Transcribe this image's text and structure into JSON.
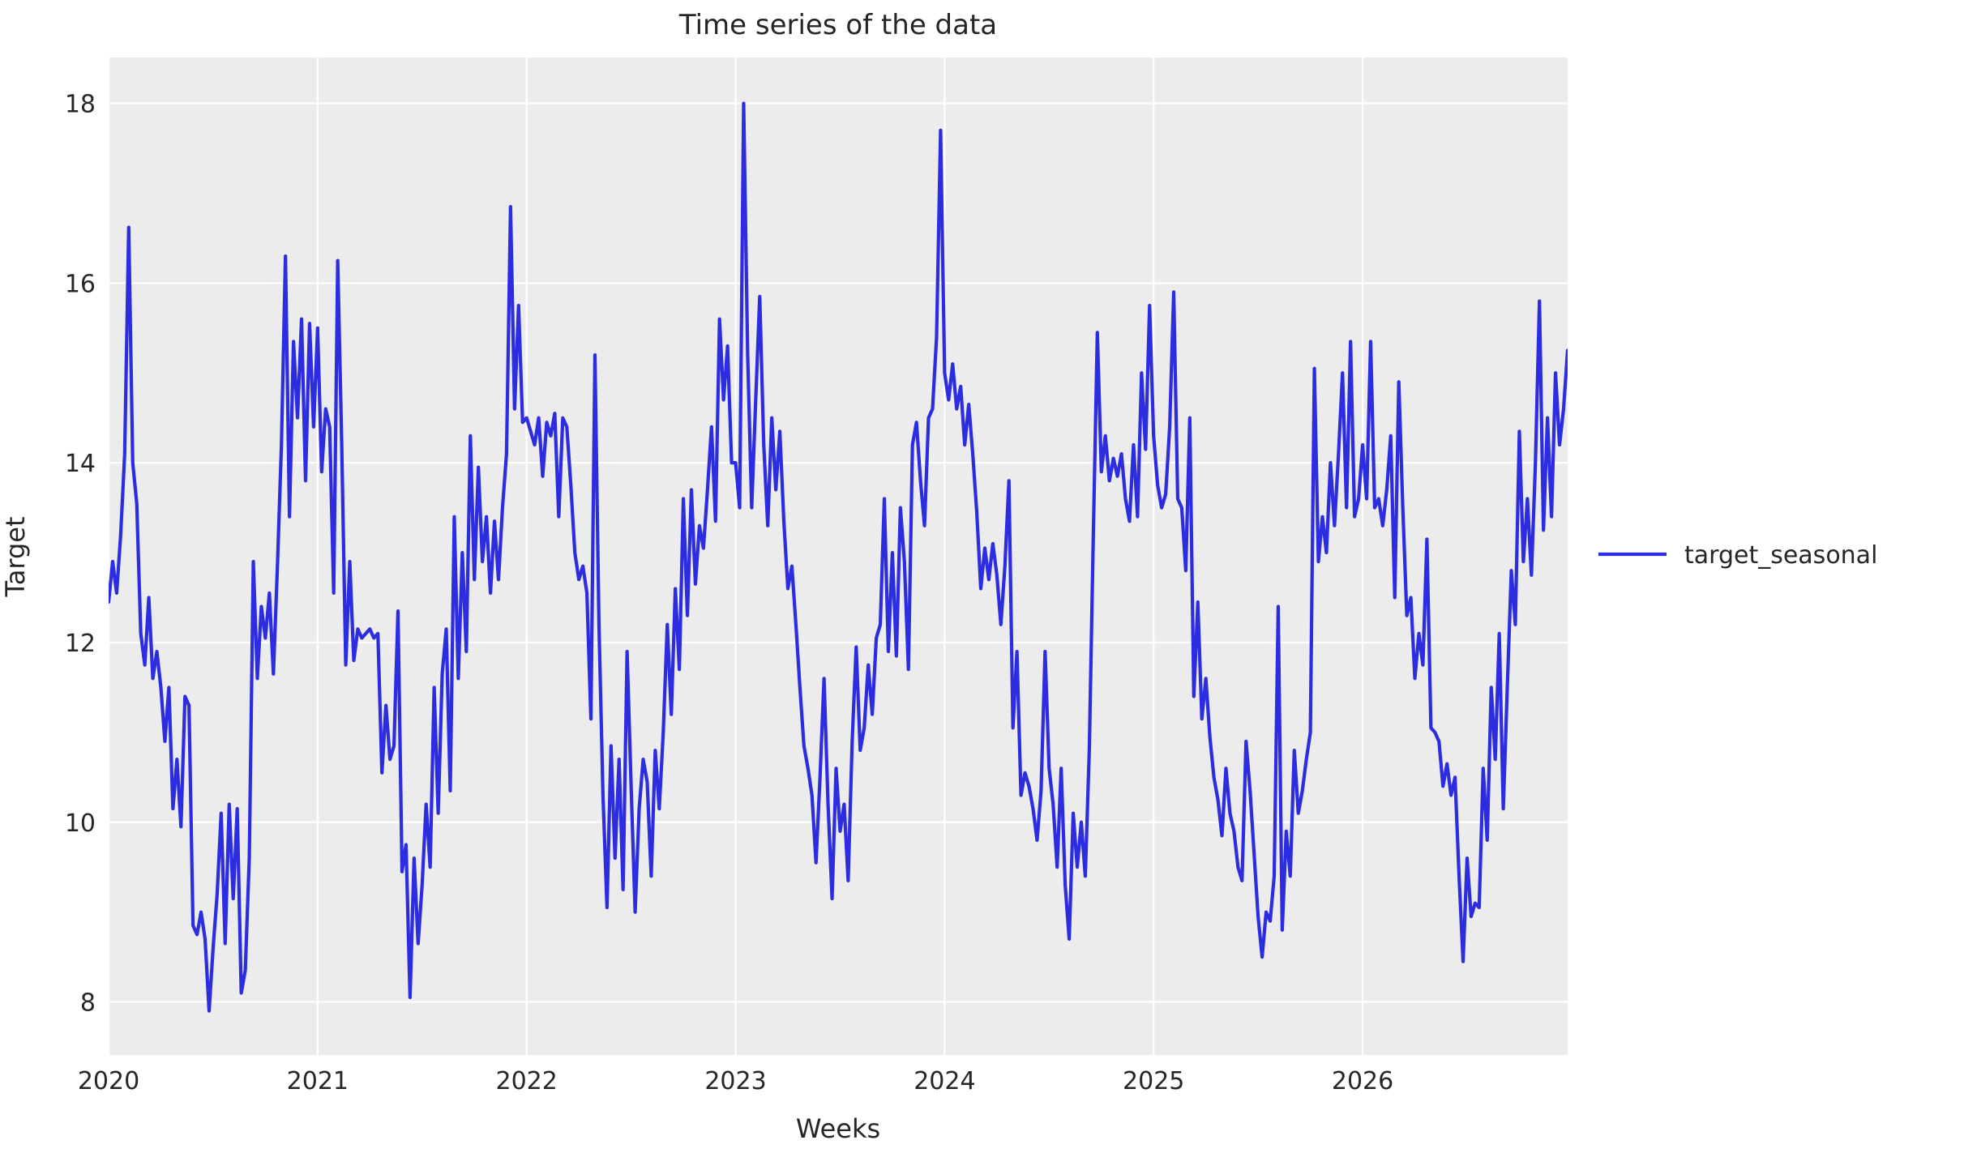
{
  "figure": {
    "title": "Time series of the data",
    "xlabel": "Weeks",
    "ylabel": "Target",
    "legend": {
      "label": "target_seasonal"
    },
    "colors": {
      "line": "#2c2ce0",
      "plot_bg": "#ececec",
      "grid": "#ffffff",
      "text": "#262626"
    }
  },
  "chart_data": {
    "type": "line",
    "title": "Time series of the data",
    "xlabel": "Weeks",
    "ylabel": "Target",
    "series_name": "target_seasonal",
    "grid": true,
    "legend_position": "right-outside-center",
    "x_start_year": 2020,
    "points_per_year": 52,
    "x_ticks": [
      2020,
      2021,
      2022,
      2023,
      2024,
      2025,
      2026
    ],
    "x_tick_labels": [
      "2020",
      "2021",
      "2022",
      "2023",
      "2024",
      "2025",
      "2026"
    ],
    "y_ticks": [
      8,
      10,
      12,
      14,
      16,
      18
    ],
    "y_tick_labels": [
      "8",
      "10",
      "12",
      "14",
      "16",
      "18"
    ],
    "xlim": [
      2020,
      2026.981
    ],
    "ylim": [
      7.41,
      18.51
    ],
    "values": [
      12.45,
      12.9,
      12.55,
      13.2,
      14.1,
      16.62,
      14.0,
      13.55,
      12.1,
      11.75,
      12.5,
      11.6,
      11.9,
      11.5,
      10.9,
      11.5,
      10.15,
      10.7,
      9.95,
      11.4,
      11.3,
      8.85,
      8.75,
      9.0,
      8.7,
      7.9,
      8.6,
      9.2,
      10.1,
      8.65,
      10.2,
      9.15,
      10.15,
      8.1,
      8.35,
      9.6,
      12.9,
      11.6,
      12.4,
      12.05,
      12.55,
      11.65,
      12.85,
      14.2,
      16.3,
      13.4,
      15.35,
      14.5,
      15.6,
      13.8,
      15.55,
      14.4,
      15.5,
      13.9,
      14.6,
      14.4,
      12.55,
      16.25,
      14.2,
      11.75,
      12.9,
      11.8,
      12.15,
      12.05,
      12.1,
      12.15,
      12.05,
      12.1,
      10.55,
      11.3,
      10.7,
      10.85,
      12.35,
      9.45,
      9.75,
      8.05,
      9.6,
      8.65,
      9.3,
      10.2,
      9.5,
      11.5,
      10.1,
      11.65,
      12.15,
      10.35,
      13.4,
      11.6,
      13.0,
      11.9,
      14.3,
      12.7,
      13.95,
      12.9,
      13.4,
      12.55,
      13.35,
      12.7,
      13.5,
      14.1,
      16.85,
      14.6,
      15.75,
      14.45,
      14.5,
      14.35,
      14.2,
      14.5,
      13.85,
      14.45,
      14.3,
      14.55,
      13.4,
      14.5,
      14.4,
      13.75,
      13.0,
      12.7,
      12.85,
      12.55,
      11.15,
      15.2,
      12.2,
      10.3,
      9.05,
      10.85,
      9.6,
      10.7,
      9.25,
      11.9,
      10.4,
      9.0,
      10.15,
      10.7,
      10.45,
      9.4,
      10.8,
      10.15,
      11.0,
      12.2,
      11.2,
      12.6,
      11.7,
      13.6,
      12.3,
      13.7,
      12.65,
      13.3,
      13.05,
      13.7,
      14.4,
      13.35,
      15.6,
      14.7,
      15.3,
      14.0,
      14.0,
      13.5,
      18.0,
      15.2,
      13.5,
      14.7,
      15.85,
      14.2,
      13.3,
      14.5,
      13.7,
      14.35,
      13.35,
      12.6,
      12.85,
      12.2,
      11.5,
      10.85,
      10.6,
      10.3,
      9.55,
      10.5,
      11.6,
      10.2,
      9.15,
      10.6,
      9.9,
      10.2,
      9.35,
      10.9,
      11.95,
      10.8,
      11.05,
      11.75,
      11.2,
      12.05,
      12.2,
      13.6,
      11.9,
      13.0,
      11.85,
      13.5,
      12.9,
      11.7,
      14.2,
      14.45,
      13.8,
      13.3,
      14.5,
      14.6,
      15.4,
      17.7,
      15.0,
      14.7,
      15.1,
      14.6,
      14.85,
      14.2,
      14.65,
      14.1,
      13.45,
      12.6,
      13.05,
      12.7,
      13.1,
      12.75,
      12.2,
      12.85,
      13.8,
      11.05,
      11.9,
      10.3,
      10.55,
      10.4,
      10.15,
      9.8,
      10.35,
      11.9,
      10.6,
      10.2,
      9.5,
      10.6,
      9.3,
      8.7,
      10.1,
      9.5,
      10.0,
      9.4,
      10.8,
      13.2,
      15.45,
      13.9,
      14.3,
      13.8,
      14.05,
      13.85,
      14.1,
      13.6,
      13.35,
      14.2,
      13.4,
      15.0,
      14.15,
      15.75,
      14.3,
      13.75,
      13.5,
      13.65,
      14.4,
      15.9,
      13.6,
      13.5,
      12.8,
      14.5,
      11.4,
      12.45,
      11.15,
      11.6,
      10.95,
      10.5,
      10.25,
      9.85,
      10.6,
      10.1,
      9.9,
      9.5,
      9.35,
      10.9,
      10.35,
      9.65,
      8.95,
      8.5,
      9.0,
      8.9,
      9.4,
      12.4,
      8.8,
      9.9,
      9.4,
      10.8,
      10.1,
      10.35,
      10.7,
      11.0,
      15.05,
      12.9,
      13.4,
      13.0,
      14.0,
      13.3,
      14.1,
      15.0,
      13.5,
      15.35,
      13.4,
      13.6,
      14.2,
      13.6,
      15.35,
      13.5,
      13.6,
      13.3,
      13.7,
      14.3,
      12.5,
      14.9,
      13.5,
      12.3,
      12.5,
      11.6,
      12.1,
      11.75,
      13.15,
      11.05,
      11.0,
      10.9,
      10.4,
      10.65,
      10.3,
      10.5,
      9.4,
      8.45,
      9.6,
      8.95,
      9.1,
      9.05,
      10.6,
      9.8,
      11.5,
      10.7,
      12.1,
      10.15,
      11.5,
      12.8,
      12.2,
      14.35,
      12.9,
      13.6,
      12.75,
      14.0,
      15.8,
      13.25,
      14.5,
      13.4,
      15.0,
      14.2,
      14.6,
      15.25
    ]
  }
}
